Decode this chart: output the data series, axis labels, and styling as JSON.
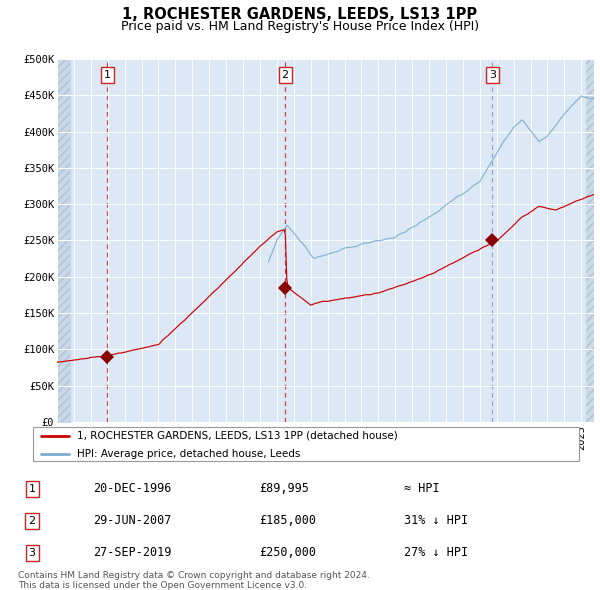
{
  "title": "1, ROCHESTER GARDENS, LEEDS, LS13 1PP",
  "subtitle": "Price paid vs. HM Land Registry's House Price Index (HPI)",
  "ylim": [
    0,
    500000
  ],
  "yticks": [
    0,
    50000,
    100000,
    150000,
    200000,
    250000,
    300000,
    350000,
    400000,
    450000,
    500000
  ],
  "ytick_labels": [
    "£0",
    "£50K",
    "£100K",
    "£150K",
    "£200K",
    "£250K",
    "£300K",
    "£350K",
    "£400K",
    "£450K",
    "£500K"
  ],
  "xlim_start": 1994.0,
  "xlim_end": 2025.75,
  "red_line_color": "#cc0000",
  "blue_line_color": "#7aadcf",
  "sale_marker_color": "#880000",
  "sale1_x": 1996.97,
  "sale1_y": 89995,
  "sale2_x": 2007.49,
  "sale2_y": 185000,
  "sale3_x": 2019.74,
  "sale3_y": 250000,
  "vline1_x": 1996.97,
  "vline2_x": 2007.49,
  "vline3_x": 2019.74,
  "vline1_color": "#cc2222",
  "vline2_color": "#cc2222",
  "vline3_color": "#8899bb",
  "bg_color": "#dce8f5",
  "hatch_bg_color": "#c8d8e8",
  "grid_color": "#ffffff",
  "legend_label_red": "1, ROCHESTER GARDENS, LEEDS, LS13 1PP (detached house)",
  "legend_label_blue": "HPI: Average price, detached house, Leeds",
  "table_entries": [
    {
      "num": "1",
      "date": "20-DEC-1996",
      "price": "£89,995",
      "rel": "≈ HPI"
    },
    {
      "num": "2",
      "date": "29-JUN-2007",
      "price": "£185,000",
      "rel": "31% ↓ HPI"
    },
    {
      "num": "3",
      "date": "27-SEP-2019",
      "price": "£250,000",
      "rel": "27% ↓ HPI"
    }
  ],
  "footer": "Contains HM Land Registry data © Crown copyright and database right 2024.\nThis data is licensed under the Open Government Licence v3.0.",
  "title_fontsize": 10.5,
  "subtitle_fontsize": 9,
  "tick_fontsize": 7.5,
  "blue_hpi_start_year": 2006.5
}
